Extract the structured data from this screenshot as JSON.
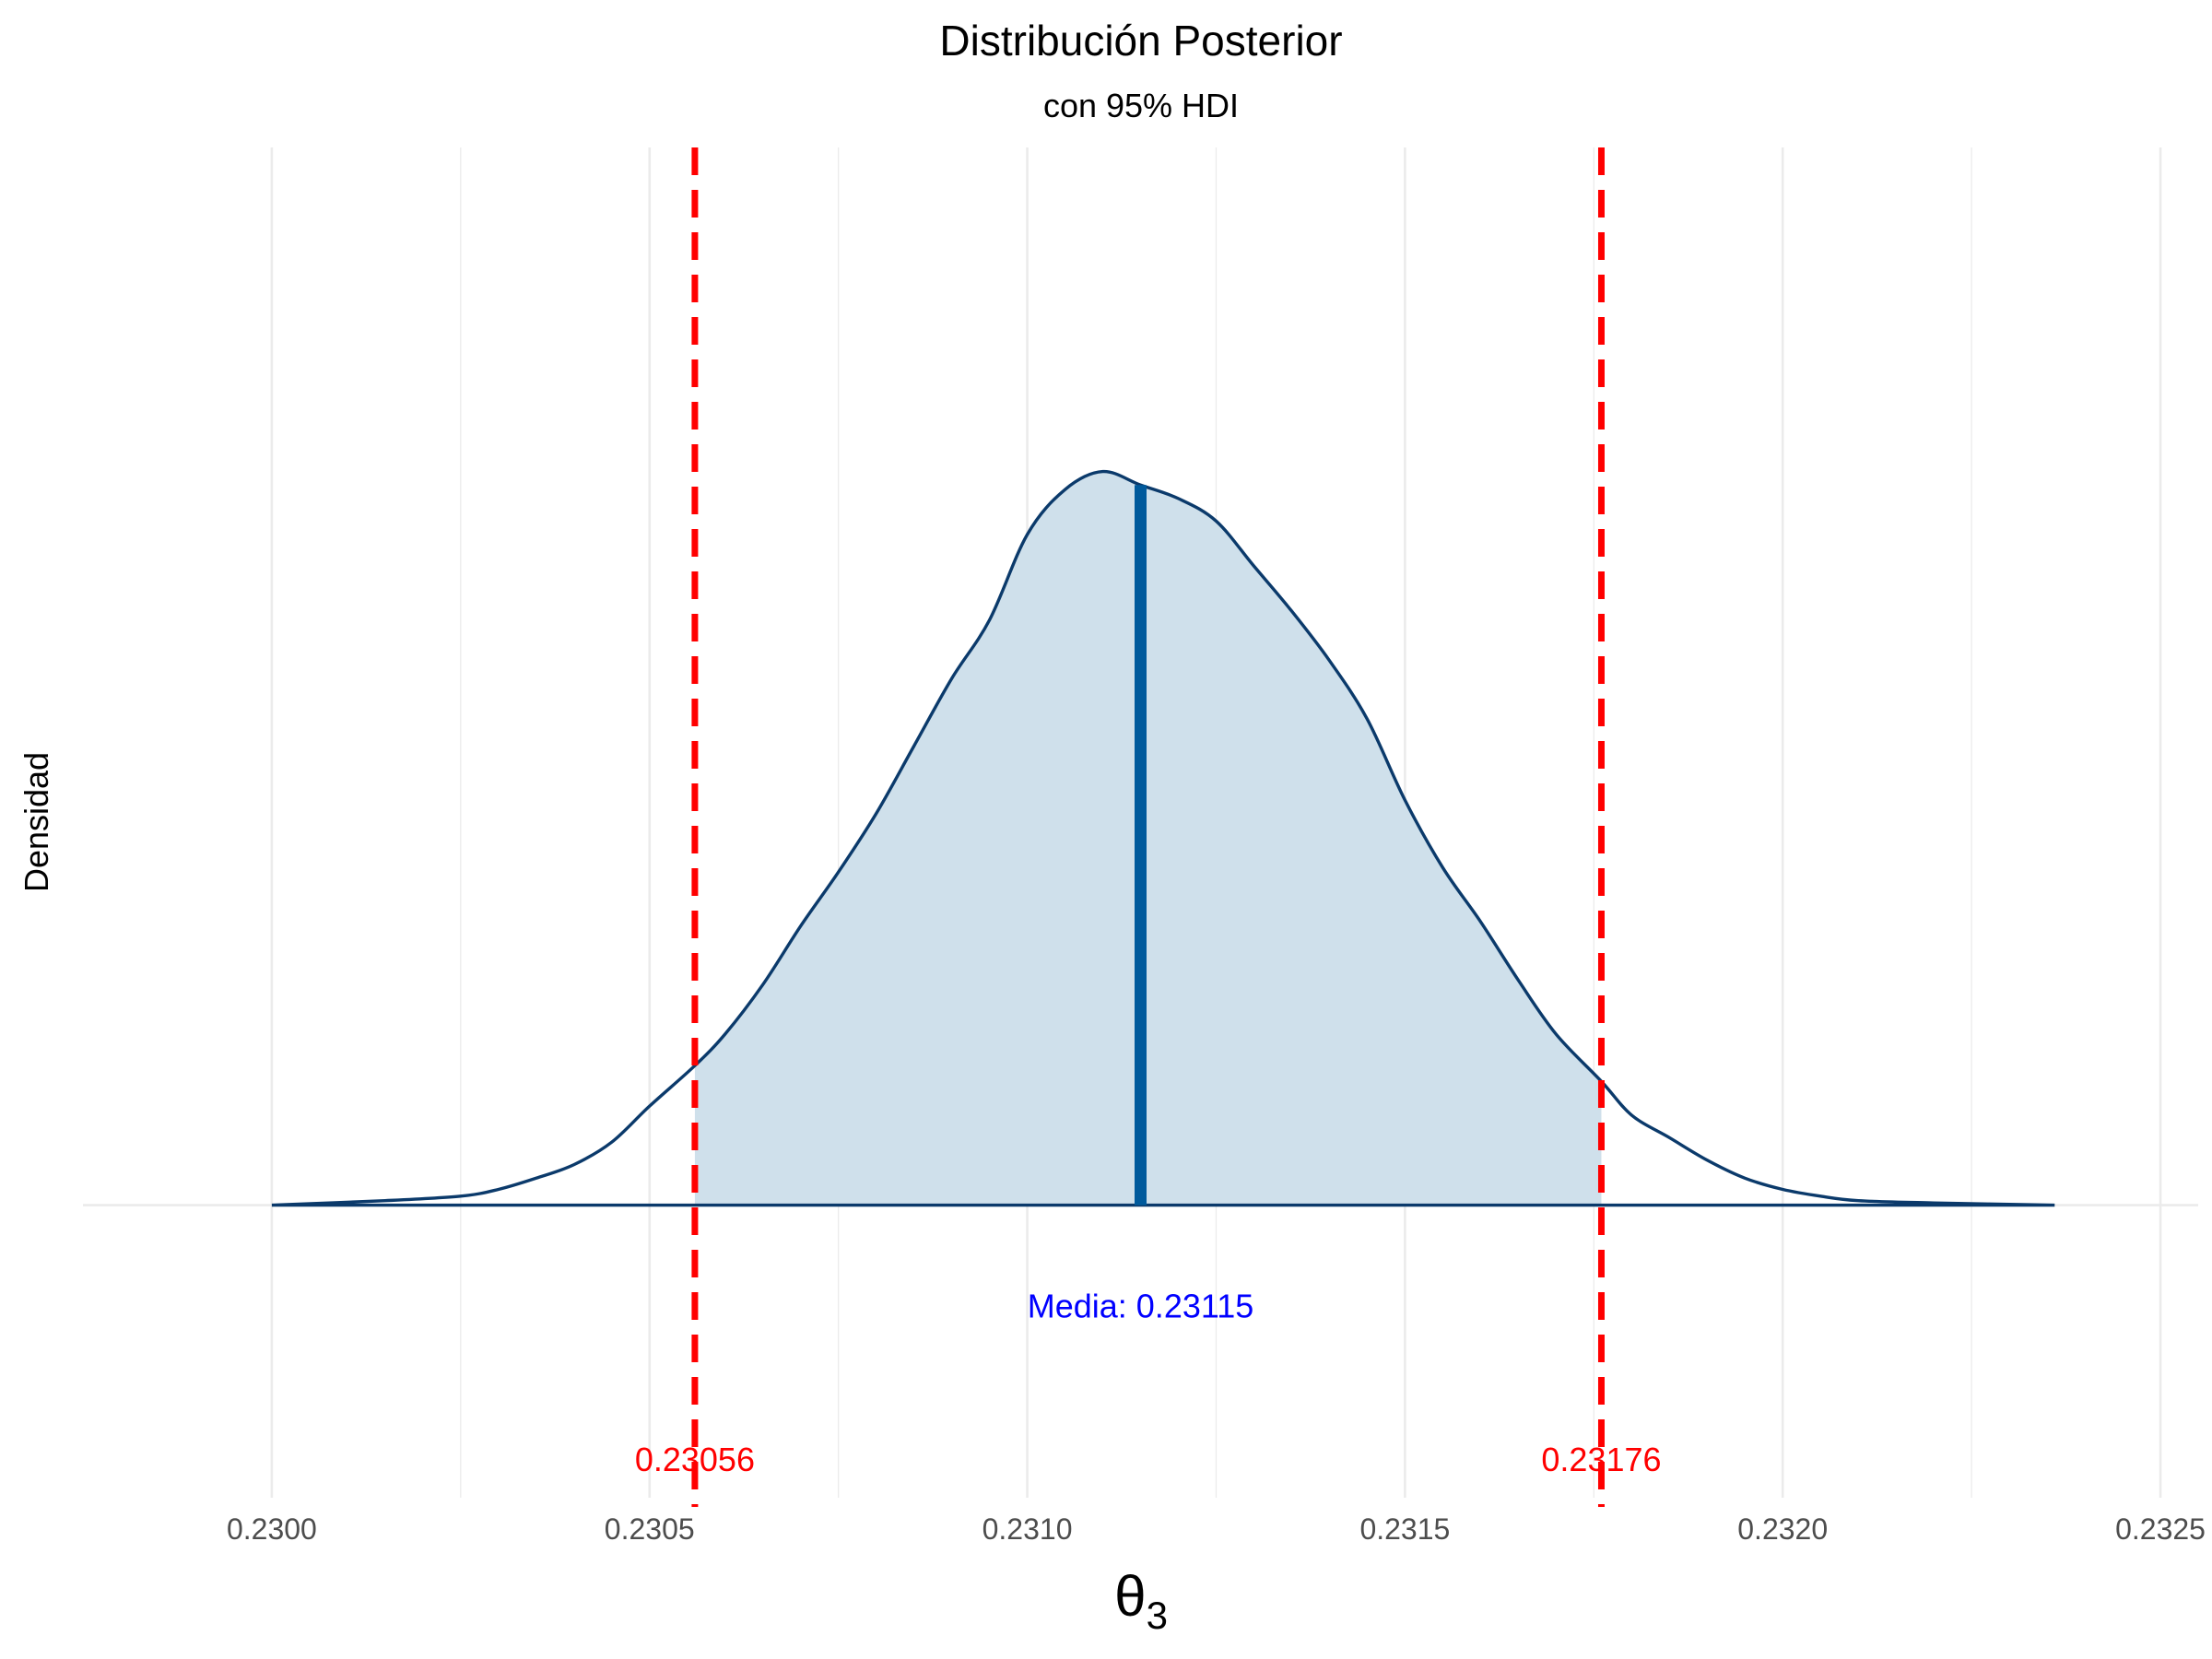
{
  "chart_data": {
    "type": "area",
    "title": "Distribución Posterior",
    "subtitle": "con 95% HDI",
    "xlabel": "θ",
    "xlabel_subscript": "3",
    "ylabel": "Densidad",
    "xlim": [
      0.22975,
      0.23255
    ],
    "ylim": [
      -1.3,
      4.7
    ],
    "x_ticks": [
      0.23,
      0.2305,
      0.231,
      0.2315,
      0.232,
      0.2325
    ],
    "x_tick_labels": [
      "0.2300",
      "0.2305",
      "0.2310",
      "0.2315",
      "0.2320",
      "0.2325"
    ],
    "grid": true,
    "density": {
      "x": [
        0.23,
        0.23015,
        0.23025,
        0.2303,
        0.23035,
        0.2304,
        0.23045,
        0.2305,
        0.23056,
        0.2306,
        0.23065,
        0.2307,
        0.23075,
        0.2308,
        0.23085,
        0.2309,
        0.23095,
        0.231,
        0.23105,
        0.2311,
        0.23115,
        0.2312,
        0.23125,
        0.2313,
        0.23135,
        0.2314,
        0.23145,
        0.2315,
        0.23155,
        0.2316,
        0.23165,
        0.2317,
        0.23176,
        0.2318,
        0.23185,
        0.2319,
        0.23195,
        0.232,
        0.23205,
        0.2321,
        0.2322,
        0.23236
      ],
      "y": [
        0.0,
        0.02,
        0.04,
        0.07,
        0.12,
        0.18,
        0.28,
        0.44,
        0.62,
        0.76,
        0.98,
        1.24,
        1.48,
        1.74,
        2.04,
        2.34,
        2.6,
        2.98,
        3.18,
        3.26,
        3.2,
        3.14,
        3.04,
        2.84,
        2.64,
        2.42,
        2.16,
        1.8,
        1.5,
        1.26,
        1.0,
        0.76,
        0.55,
        0.4,
        0.3,
        0.2,
        0.12,
        0.07,
        0.04,
        0.02,
        0.01,
        0.0
      ]
    },
    "hdi_interval": [
      0.23056,
      0.23176
    ],
    "hdi_labels": [
      "0.23056",
      "0.23176"
    ],
    "mean": 0.23115,
    "mean_label": "Media: 0.23115",
    "colors": {
      "fill": "#cfe0eb",
      "curve": "#0b3a6b",
      "mean_line": "#005a9c",
      "hdi_line": "#ff0000",
      "mean_text": "#0000ff",
      "hdi_text": "#ff0000",
      "grid": "#ebebeb"
    }
  }
}
